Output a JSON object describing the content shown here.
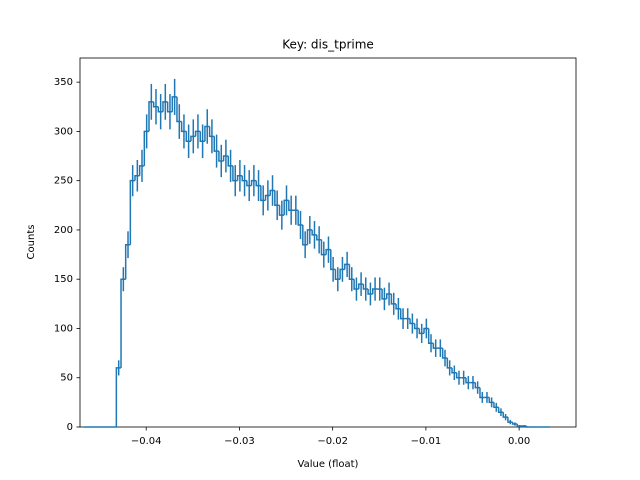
{
  "chart_data": {
    "type": "histogram",
    "title": "Key: dis_tprime",
    "xlabel": "Value (float)",
    "ylabel": "Counts",
    "color": "#1f77b4",
    "bins": [
      -0.0467,
      -0.0462,
      -0.0457,
      -0.0452,
      -0.0447,
      -0.0442,
      -0.0437,
      -0.0432,
      -0.0427,
      -0.0422,
      -0.0417,
      -0.0412,
      -0.0407,
      -0.0402,
      -0.0397,
      -0.0392,
      -0.0387,
      -0.0382,
      -0.0377,
      -0.0372,
      -0.0367,
      -0.0362,
      -0.0357,
      -0.0352,
      -0.0347,
      -0.0342,
      -0.0337,
      -0.0332,
      -0.0327,
      -0.0322,
      -0.0317,
      -0.0312,
      -0.0307,
      -0.0302,
      -0.0297,
      -0.0292,
      -0.0287,
      -0.0282,
      -0.0277,
      -0.0272,
      -0.0267,
      -0.0262,
      -0.0257,
      -0.0252,
      -0.0247,
      -0.0242,
      -0.0237,
      -0.0232,
      -0.0227,
      -0.0222,
      -0.0217,
      -0.0212,
      -0.0207,
      -0.0202,
      -0.0197,
      -0.0192,
      -0.0187,
      -0.0182,
      -0.0177,
      -0.0172,
      -0.0167,
      -0.0162,
      -0.0157,
      -0.0152,
      -0.0147,
      -0.0142,
      -0.0137,
      -0.0132,
      -0.0127,
      -0.0122,
      -0.0117,
      -0.0112,
      -0.0107,
      -0.0102,
      -0.0097,
      -0.0092,
      -0.0087,
      -0.0082,
      -0.0077,
      -0.0072,
      -0.0067,
      -0.0062,
      -0.0057,
      -0.0052,
      -0.0047,
      -0.0042,
      -0.0037,
      -0.0032,
      -0.0027,
      -0.0022,
      -0.0017,
      -0.0012,
      -0.0007,
      -0.0002,
      0.0003,
      0.0008,
      0.0013,
      0.0018,
      0.0023,
      0.0028,
      0.0033
    ],
    "values": [
      0,
      0,
      0,
      0,
      0,
      0,
      0,
      60,
      150,
      185,
      250,
      255,
      265,
      300,
      330,
      325,
      320,
      330,
      320,
      335,
      310,
      300,
      290,
      295,
      300,
      290,
      305,
      295,
      280,
      270,
      275,
      265,
      250,
      255,
      250,
      245,
      250,
      245,
      230,
      235,
      240,
      225,
      215,
      230,
      220,
      220,
      205,
      185,
      200,
      195,
      190,
      175,
      180,
      160,
      150,
      160,
      165,
      150,
      140,
      145,
      140,
      135,
      140,
      140,
      130,
      135,
      125,
      120,
      110,
      110,
      105,
      100,
      95,
      100,
      85,
      80,
      80,
      70,
      60,
      55,
      50,
      50,
      45,
      45,
      40,
      30,
      30,
      25,
      20,
      15,
      10,
      5,
      3,
      1,
      1,
      0,
      0,
      0,
      0,
      0,
      0
    ],
    "errors": [
      0,
      0,
      0,
      0,
      0,
      0,
      0,
      7.7,
      12.2,
      13.6,
      15.8,
      16,
      16.3,
      17.3,
      18.2,
      18,
      17.9,
      18.2,
      17.9,
      18.3,
      17.6,
      17.3,
      17,
      17.2,
      17.3,
      17,
      17.5,
      17.2,
      16.7,
      16.4,
      16.6,
      16.3,
      15.8,
      16,
      15.8,
      15.7,
      15.8,
      15.7,
      15.2,
      15.3,
      15.5,
      15,
      14.7,
      15.2,
      14.8,
      14.8,
      14.3,
      13.6,
      14.1,
      14,
      13.8,
      13.2,
      13.4,
      12.6,
      12.2,
      12.6,
      12.8,
      12.2,
      11.8,
      12,
      11.8,
      11.6,
      11.8,
      11.8,
      11.4,
      11.6,
      11.2,
      11,
      10.5,
      10.5,
      10.2,
      10,
      9.7,
      10,
      9.2,
      8.9,
      8.9,
      8.4,
      7.7,
      7.4,
      7.1,
      7.1,
      6.7,
      6.7,
      6.3,
      5.5,
      5.5,
      5,
      4.5,
      3.9,
      3.2,
      2.2,
      1.7,
      1,
      1,
      0,
      0,
      0,
      0,
      0,
      0
    ],
    "xlim": [
      -0.0471,
      0.0061
    ],
    "ylim": [
      0,
      374.5
    ],
    "xticks": [
      {
        "value": -0.04,
        "label": "−0.04"
      },
      {
        "value": -0.03,
        "label": "−0.03"
      },
      {
        "value": -0.02,
        "label": "−0.02"
      },
      {
        "value": -0.01,
        "label": "−0.01"
      },
      {
        "value": 0,
        "label": "0.00"
      }
    ],
    "yticks": [
      0,
      50,
      100,
      150,
      200,
      250,
      300,
      350
    ]
  }
}
